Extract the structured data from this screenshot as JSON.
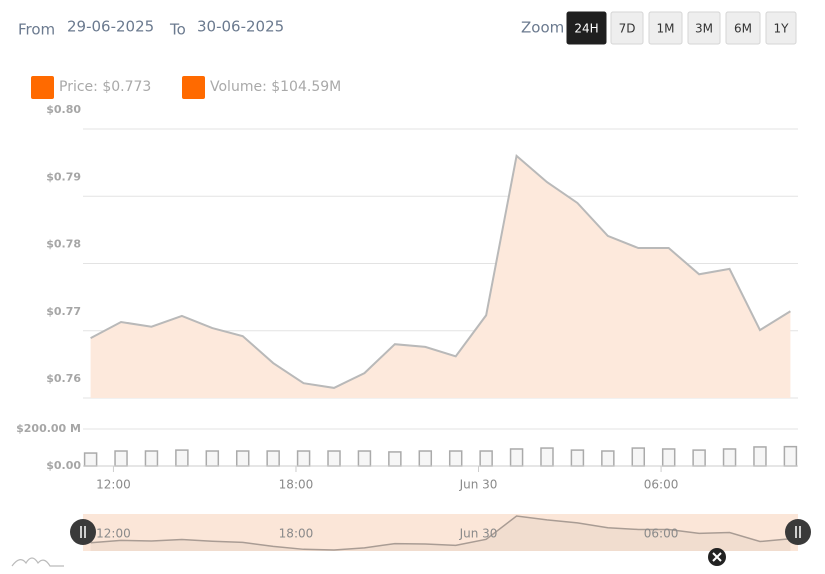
{
  "header": {
    "from_label": "From",
    "from_date": "29-06-2025",
    "to_label": "To",
    "to_date": "30-06-2025",
    "zoom_label": "Zoom",
    "zoom_buttons": [
      "24H",
      "7D",
      "1M",
      "3M",
      "6M",
      "1Y"
    ],
    "active": "24H"
  },
  "chart_data": [
    {
      "type": "area",
      "x": [
        11.25,
        12.25,
        13.25,
        14.25,
        15.25,
        16.25,
        17.25,
        18.25,
        19.25,
        20.25,
        21.25,
        22.25,
        23.25,
        24.25,
        25.25,
        26.25,
        27.25,
        28.25,
        29.25,
        30.25,
        31.25,
        32.25,
        33.25,
        34.25
      ],
      "series": [
        {
          "name": "Price: $0.773",
          "color": "#ff6a00",
          "line_color": "#b9b9b9",
          "fill_color": "#fde9dc",
          "values": [
            0.7689,
            0.7713,
            0.7706,
            0.7722,
            0.7704,
            0.7692,
            0.7652,
            0.7622,
            0.7615,
            0.7637,
            0.768,
            0.7676,
            0.7662,
            0.7723,
            0.796,
            0.7921,
            0.789,
            0.7841,
            0.7823,
            0.7823,
            0.7784,
            0.7792,
            0.7701,
            0.7729
          ]
        }
      ],
      "xlim": [
        11,
        34.5
      ],
      "ylim": [
        0.76,
        0.8
      ],
      "yticks": [
        {
          "value": 0.76,
          "label": "$0.76"
        },
        {
          "value": 0.77,
          "label": "$0.77"
        },
        {
          "value": 0.78,
          "label": "$0.78"
        },
        {
          "value": 0.79,
          "label": "$0.79"
        },
        {
          "value": 0.8,
          "label": "$0.80"
        }
      ],
      "grid": true
    },
    {
      "type": "bar",
      "x": [
        11.25,
        12.25,
        13.25,
        14.25,
        15.25,
        16.25,
        17.25,
        18.25,
        19.25,
        20.25,
        21.25,
        22.25,
        23.25,
        24.25,
        25.25,
        26.25,
        27.25,
        28.25,
        29.25,
        30.25,
        31.25,
        32.25,
        33.25,
        34.25
      ],
      "series": [
        {
          "name": "Volume: $104.59M",
          "color": "#ff6a00",
          "bar_fill": "#f6f6f6",
          "bar_stroke": "#aaaaaa",
          "values": [
            70,
            81,
            81,
            86,
            81,
            81,
            81,
            81,
            81,
            81,
            76,
            81,
            81,
            81,
            92,
            97,
            86,
            81,
            97,
            92,
            86,
            92,
            103,
            104.59
          ]
        }
      ],
      "xlim": [
        11,
        34.5
      ],
      "xticks": [
        {
          "value": 12,
          "label": "12:00"
        },
        {
          "value": 18,
          "label": "18:00"
        },
        {
          "value": 24,
          "label": "Jun 30"
        },
        {
          "value": 30,
          "label": "06:00"
        }
      ],
      "ylim": [
        0,
        200
      ],
      "yticks": [
        {
          "value": 0,
          "label": "$0.00"
        },
        {
          "value": 200,
          "label": "$200.00 M"
        }
      ],
      "grid": true
    }
  ]
}
